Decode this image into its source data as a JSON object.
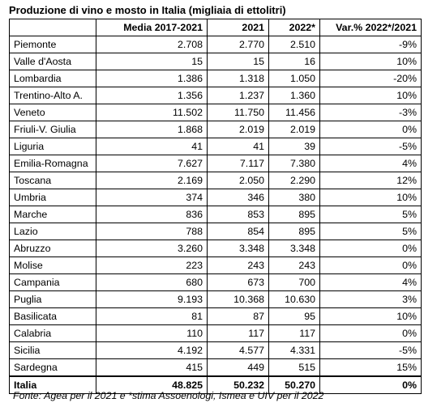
{
  "title": "Produzione di vino e mosto in Italia (migliaia di ettolitri)",
  "headers": [
    "",
    "Media 2017-2021",
    "2021",
    "2022*",
    "Var.% 2022*/2021"
  ],
  "rows": [
    [
      "Piemonte",
      "2.708",
      "2.770",
      "2.510",
      "-9%"
    ],
    [
      "Valle d'Aosta",
      "15",
      "15",
      "16",
      "10%"
    ],
    [
      "Lombardia",
      "1.386",
      "1.318",
      "1.050",
      "-20%"
    ],
    [
      "Trentino-Alto A.",
      "1.356",
      "1.237",
      "1.360",
      "10%"
    ],
    [
      "Veneto",
      "11.502",
      "11.750",
      "11.456",
      "-3%"
    ],
    [
      "Friuli-V. Giulia",
      "1.868",
      "2.019",
      "2.019",
      "0%"
    ],
    [
      "Liguria",
      "41",
      "41",
      "39",
      "-5%"
    ],
    [
      "Emilia-Romagna",
      "7.627",
      "7.117",
      "7.380",
      "4%"
    ],
    [
      "Toscana",
      "2.169",
      "2.050",
      "2.290",
      "12%"
    ],
    [
      "Umbria",
      "374",
      "346",
      "380",
      "10%"
    ],
    [
      "Marche",
      "836",
      "853",
      "895",
      "5%"
    ],
    [
      "Lazio",
      "788",
      "854",
      "895",
      "5%"
    ],
    [
      "Abruzzo",
      "3.260",
      "3.348",
      "3.348",
      "0%"
    ],
    [
      "Molise",
      "223",
      "243",
      "243",
      "0%"
    ],
    [
      "Campania",
      "680",
      "673",
      "700",
      "4%"
    ],
    [
      "Puglia",
      "9.193",
      "10.368",
      "10.630",
      "3%"
    ],
    [
      "Basilicata",
      "81",
      "87",
      "95",
      "10%"
    ],
    [
      "Calabria",
      "110",
      "117",
      "117",
      "0%"
    ],
    [
      "Sicilia",
      "4.192",
      "4.577",
      "4.331",
      "-5%"
    ],
    [
      "Sardegna",
      "415",
      "449",
      "515",
      "15%"
    ]
  ],
  "total": [
    "Italia",
    "48.825",
    "50.232",
    "50.270",
    "0%"
  ],
  "source": "Fonte: Agea per il 2021 e *stima Assoenologi, Ismea e UIV per il 2022"
}
